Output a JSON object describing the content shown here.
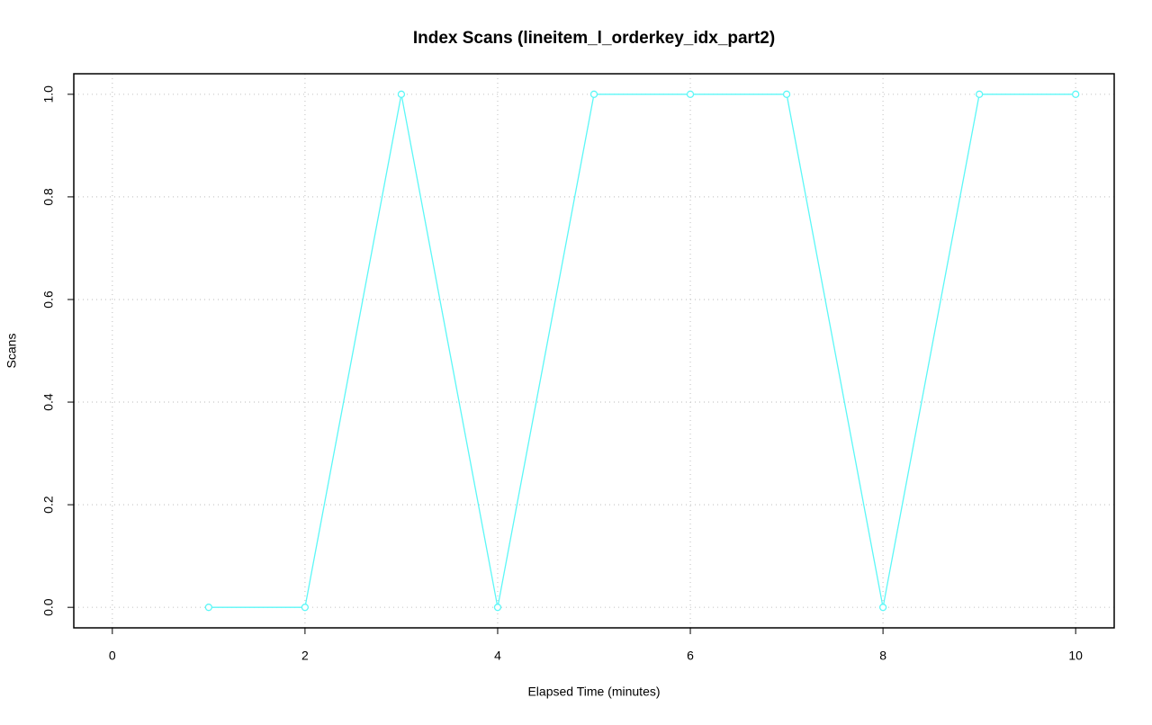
{
  "chart_data": {
    "type": "line",
    "title": "Index Scans (lineitem_l_orderkey_idx_part2)",
    "x_label": "Elapsed Time (minutes)",
    "y_label": "Scans",
    "x": [
      1,
      2,
      3,
      4,
      5,
      6,
      7,
      8,
      9,
      10
    ],
    "series": [
      {
        "name": "lineitem_l_orderkey_idx_part2",
        "color": "#5cf7f7",
        "values": [
          0,
          0,
          1,
          0,
          1,
          1,
          1,
          0,
          1,
          1
        ]
      }
    ],
    "xlim": [
      -0.4,
      10.4
    ],
    "ylim": [
      -0.04,
      1.04
    ],
    "xticks": [
      0,
      2,
      4,
      6,
      8,
      10
    ],
    "yticks": [
      {
        "value": 0,
        "label": "0.0"
      },
      {
        "value": 0.2,
        "label": "0.2"
      },
      {
        "value": 0.4,
        "label": "0.4"
      },
      {
        "value": 0.6,
        "label": "0.6"
      },
      {
        "value": 0.8,
        "label": "0.8"
      },
      {
        "value": 1,
        "label": "1.0"
      }
    ],
    "grid": true
  }
}
